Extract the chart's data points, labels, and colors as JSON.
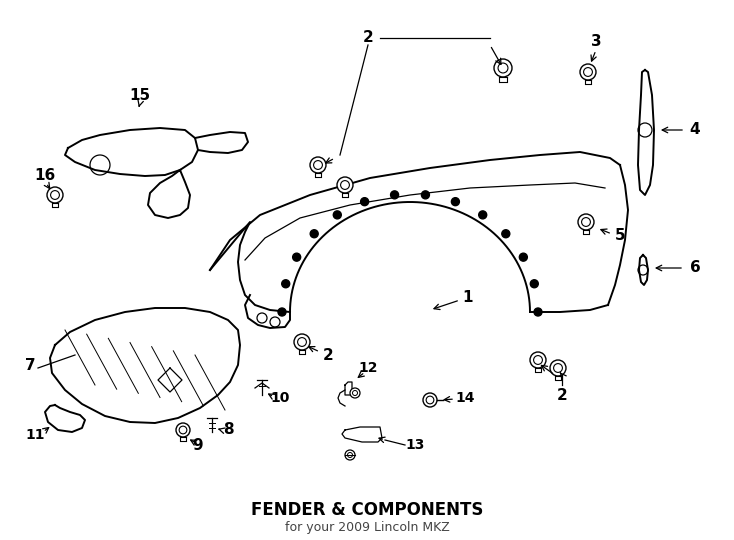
{
  "title": "FENDER & COMPONENTS",
  "subtitle": "for your 2009 Lincoln MKZ",
  "bg_color": "#ffffff",
  "line_color": "#000000",
  "fig_width": 7.34,
  "fig_height": 5.4,
  "dpi": 100
}
